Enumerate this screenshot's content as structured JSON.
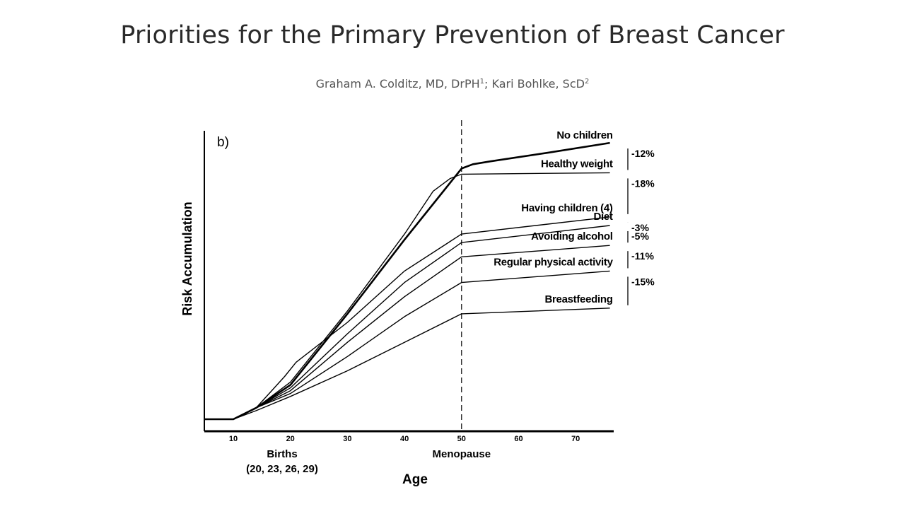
{
  "header": {
    "title": "Priorities for the Primary Prevention of Breast Cancer",
    "author1": "Graham A. Colditz, MD, DrPH",
    "author1_sup": "1",
    "separator": "; ",
    "author2": "Kari Bohlke, ScD",
    "author2_sup": "2"
  },
  "chart_data": {
    "type": "line",
    "panel_label": "b)",
    "xlabel": "Age",
    "ylabel": "Risk Accumulation",
    "xlim": [
      5,
      76
    ],
    "x_ticks": [
      10,
      20,
      30,
      40,
      50,
      60,
      70
    ],
    "annotations": {
      "births_label": "Births",
      "births_ages": "(20, 23, 26, 29)",
      "menopause_label": "Menopause",
      "menopause_age": 50
    },
    "series": [
      {
        "name": "No children",
        "bold": true,
        "points": [
          [
            5,
            0
          ],
          [
            10,
            0
          ],
          [
            14,
            4
          ],
          [
            20,
            12
          ],
          [
            30,
            37
          ],
          [
            40,
            63
          ],
          [
            50,
            88
          ],
          [
            52,
            89.5
          ],
          [
            55,
            90.5
          ],
          [
            65,
            93.5
          ],
          [
            76,
            97
          ]
        ]
      },
      {
        "name": "Healthy weight",
        "points": [
          [
            5,
            0
          ],
          [
            10,
            0
          ],
          [
            14,
            4
          ],
          [
            20,
            13
          ],
          [
            30,
            38
          ],
          [
            40,
            65
          ],
          [
            45,
            80
          ],
          [
            48,
            84.5
          ],
          [
            50,
            86
          ],
          [
            76,
            86.5
          ]
        ]
      },
      {
        "name": "Having children (4)",
        "points": [
          [
            5,
            0
          ],
          [
            10,
            0
          ],
          [
            14,
            4
          ],
          [
            19,
            15
          ],
          [
            21,
            20
          ],
          [
            30,
            34
          ],
          [
            40,
            52
          ],
          [
            50,
            65
          ],
          [
            76,
            71
          ]
        ]
      },
      {
        "name": "Diet",
        "points": [
          [
            5,
            0
          ],
          [
            10,
            0
          ],
          [
            14,
            4
          ],
          [
            20,
            11
          ],
          [
            30,
            30
          ],
          [
            40,
            48
          ],
          [
            50,
            62
          ],
          [
            76,
            68
          ]
        ]
      },
      {
        "name": "Avoiding alcohol",
        "points": [
          [
            5,
            0
          ],
          [
            10,
            0
          ],
          [
            14,
            4
          ],
          [
            20,
            10
          ],
          [
            30,
            27
          ],
          [
            40,
            43
          ],
          [
            50,
            57
          ],
          [
            76,
            61
          ]
        ]
      },
      {
        "name": "Regular physical activity",
        "points": [
          [
            5,
            0
          ],
          [
            10,
            0
          ],
          [
            14,
            4
          ],
          [
            20,
            9
          ],
          [
            30,
            22
          ],
          [
            40,
            36
          ],
          [
            50,
            48
          ],
          [
            76,
            52
          ]
        ]
      },
      {
        "name": "Breastfeeding",
        "points": [
          [
            5,
            0
          ],
          [
            10,
            0
          ],
          [
            14,
            3
          ],
          [
            20,
            8
          ],
          [
            30,
            17
          ],
          [
            40,
            27
          ],
          [
            50,
            37
          ],
          [
            76,
            39
          ]
        ]
      }
    ],
    "labels": [
      "No children",
      "Healthy weight",
      "Having children (4)",
      "Diet",
      "Avoiding alcohol",
      "Regular physical activity",
      "Breastfeeding"
    ],
    "reductions": [
      {
        "text": "-12%",
        "between": [
          "No children",
          "Healthy weight"
        ]
      },
      {
        "text": "-18%",
        "between": [
          "Healthy weight",
          "Having children (4)"
        ]
      },
      {
        "text": "-3%",
        "between": [
          "Having children (4)",
          "Diet"
        ]
      },
      {
        "text": "-5%",
        "between": [
          "Diet",
          "Avoiding alcohol"
        ]
      },
      {
        "text": "-11%",
        "between": [
          "Avoiding alcohol",
          "Regular physical activity"
        ]
      },
      {
        "text": "-15%",
        "between": [
          "Regular physical activity",
          "Breastfeeding"
        ]
      }
    ]
  }
}
